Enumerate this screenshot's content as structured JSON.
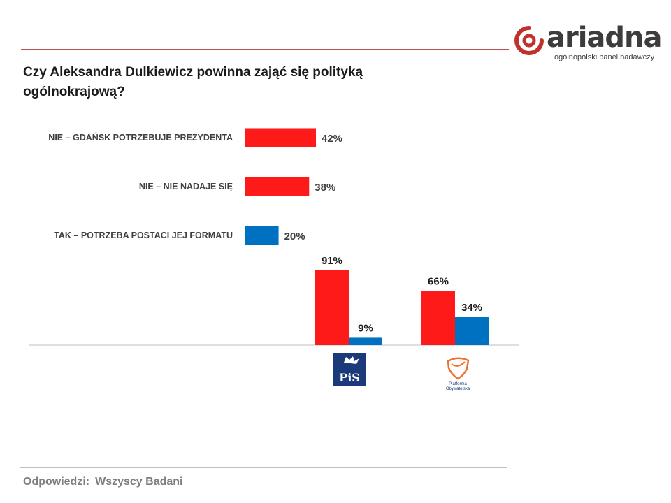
{
  "brand": {
    "name": "ariadna",
    "tagline": "ogólnopolski panel badawczy",
    "accent": "#c0322d"
  },
  "question": "Czy Aleksandra Dulkiewicz powinna zająć się polityką ogólnokrajową?",
  "footer": {
    "label": "Odpowiedzi:",
    "value": "Wszyscy Badani"
  },
  "colors": {
    "no": "#ff1a1a",
    "yes": "#0070c0",
    "text": "#404040",
    "axis": "#bfbfbf"
  },
  "chart_data": [
    {
      "type": "bar",
      "orientation": "horizontal",
      "categories": [
        "NIE – GDAŃSK POTRZEBUJE PREZYDENTA",
        "NIE – NIE NADAJE SIĘ",
        "TAK – POTRZEBA POSTACI JEJ FORMATU"
      ],
      "values": [
        42,
        38,
        20
      ],
      "value_labels": [
        "42%",
        "38%",
        "20%"
      ],
      "unit": "%",
      "bar_colors": [
        "#ff1a1a",
        "#ff1a1a",
        "#0070c0"
      ]
    },
    {
      "type": "bar",
      "orientation": "vertical",
      "categories": [
        "PiS",
        "Platforma Obywatelska"
      ],
      "series": [
        {
          "values": [
            91,
            66
          ],
          "value_labels": [
            "91%",
            "66%"
          ],
          "color": "#ff1a1a"
        },
        {
          "values": [
            9,
            34
          ],
          "value_labels": [
            "9%",
            "34%"
          ],
          "color": "#0070c0"
        }
      ],
      "unit": "%",
      "ylim": [
        0,
        100
      ],
      "category_logos": [
        {
          "name": "pis-logo",
          "text": "PiS"
        },
        {
          "name": "platforma-logo",
          "text": "Platforma Obywatelska"
        }
      ]
    }
  ]
}
